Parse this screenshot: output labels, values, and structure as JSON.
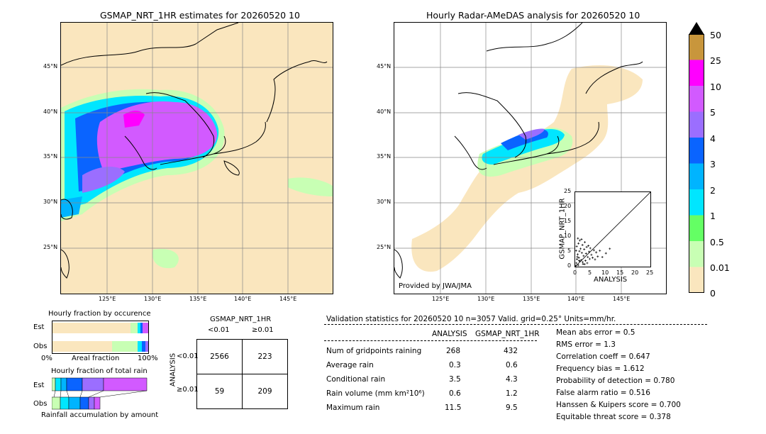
{
  "left_panel": {
    "title": "GSMAP_NRT_1HR estimates for 20260520 10",
    "lat_labels": [
      "45°N",
      "40°N",
      "35°N",
      "30°N",
      "25°N"
    ],
    "lon_labels": [
      "125°E",
      "130°E",
      "135°E",
      "140°E",
      "145°E"
    ]
  },
  "right_panel": {
    "title": "Hourly Radar-AMeDAS analysis for 20260520 10",
    "lat_labels": [
      "45°N",
      "40°N",
      "35°N",
      "30°N",
      "25°N"
    ],
    "lon_labels": [
      "125°E",
      "130°E",
      "135°E",
      "140°E",
      "145°E"
    ],
    "provided_by": "Provided by JWA/JMA"
  },
  "colorbar": {
    "labels": [
      "50",
      "25",
      "10",
      "5",
      "4",
      "3",
      "2",
      "1",
      "0.5",
      "0.01",
      "0"
    ],
    "colors": [
      "#c8963c",
      "#ff00ff",
      "#d25aff",
      "#9b6eff",
      "#0a64ff",
      "#00b4ff",
      "#00e6ff",
      "#64ff64",
      "#c8ffb4",
      "#fae6be"
    ]
  },
  "chart_data": [
    {
      "type": "scatter",
      "title": "",
      "xlabel": "ANALYSIS",
      "ylabel": "GSMAP_NRT_1HR",
      "xlim": [
        0,
        25
      ],
      "ylim": [
        0,
        25
      ],
      "xticks": [
        "0",
        "5",
        "10",
        "15",
        "20",
        "25"
      ],
      "yticks": [
        "0",
        "5",
        "10",
        "15",
        "20",
        "25"
      ],
      "points": [
        [
          0.2,
          0.3
        ],
        [
          0.4,
          1.2
        ],
        [
          0.6,
          2.5
        ],
        [
          0.8,
          4.1
        ],
        [
          1.0,
          0.5
        ],
        [
          1.2,
          3.0
        ],
        [
          1.4,
          5.2
        ],
        [
          1.6,
          1.8
        ],
        [
          1.8,
          6.0
        ],
        [
          2.0,
          2.2
        ],
        [
          2.2,
          4.6
        ],
        [
          2.4,
          7.3
        ],
        [
          2.6,
          0.9
        ],
        [
          2.8,
          3.6
        ],
        [
          3.0,
          5.8
        ],
        [
          3.2,
          8.2
        ],
        [
          3.4,
          2.0
        ],
        [
          3.6,
          4.4
        ],
        [
          3.8,
          6.6
        ],
        [
          4.0,
          1.2
        ],
        [
          4.2,
          3.2
        ],
        [
          4.4,
          7.0
        ],
        [
          4.6,
          5.0
        ],
        [
          4.8,
          2.6
        ],
        [
          5.0,
          6.2
        ],
        [
          5.4,
          4.0
        ],
        [
          5.8,
          3.0
        ],
        [
          6.2,
          5.5
        ],
        [
          6.6,
          2.4
        ],
        [
          7.0,
          4.8
        ],
        [
          7.5,
          3.4
        ],
        [
          8.2,
          5.4
        ],
        [
          9.0,
          3.2
        ],
        [
          10.2,
          4.5
        ],
        [
          11.5,
          6.0
        ],
        [
          0.5,
          6.8
        ],
        [
          1.1,
          7.8
        ],
        [
          1.5,
          8.8
        ],
        [
          2.1,
          9.2
        ],
        [
          0.3,
          5.4
        ],
        [
          0.7,
          3.3
        ],
        [
          1.3,
          2.0
        ],
        [
          2.5,
          1.5
        ],
        [
          3.1,
          0.8
        ],
        [
          0.9,
          9.5
        ]
      ]
    },
    {
      "type": "bar",
      "title": "Hourly fraction by occurence",
      "categories": [
        "Est",
        "Obs"
      ],
      "xlabels": [
        "0%",
        "Areal fraction",
        "100%"
      ]
    },
    {
      "type": "bar",
      "title": "Hourly fraction of total rain",
      "categories": [
        "Est",
        "Obs"
      ],
      "xlabel": "Rainfall accumulation by amount"
    },
    {
      "type": "table",
      "title": "GSMAP_NRT_1HR",
      "col_headers": [
        "<0.01",
        "≥0.01"
      ],
      "row_axis_label": "ANALYSIS",
      "row_headers": [
        "<0.01",
        "≥0.01"
      ],
      "cells": [
        [
          "2566",
          "223"
        ],
        [
          "59",
          "209"
        ]
      ]
    }
  ],
  "validation": {
    "header": "Validation statistics for 20260520 10  n=3057 Valid. grid=0.25° Units=mm/hr.",
    "col_analysis": "ANALYSIS",
    "col_gsmap": "GSMAP_NRT_1HR",
    "rows": [
      {
        "label": "Num of gridpoints raining",
        "analysis": "268",
        "gsmap": "432"
      },
      {
        "label": "Average rain",
        "analysis": "0.3",
        "gsmap": "0.6"
      },
      {
        "label": "Conditional rain",
        "analysis": "3.5",
        "gsmap": "4.3"
      },
      {
        "label": "Rain volume (mm km²10⁶)",
        "analysis": "0.6",
        "gsmap": "1.2"
      },
      {
        "label": "Maximum rain",
        "analysis": "11.5",
        "gsmap": "9.5"
      }
    ],
    "scores": [
      "Mean abs error =    0.5",
      "RMS error =    1.3",
      "Correlation coeff =  0.647",
      "Frequency bias =  1.612",
      "Probability of detection =  0.780",
      "False alarm ratio =  0.516",
      "Hanssen & Kuipers score =  0.700",
      "Equitable threat score =  0.378"
    ]
  }
}
